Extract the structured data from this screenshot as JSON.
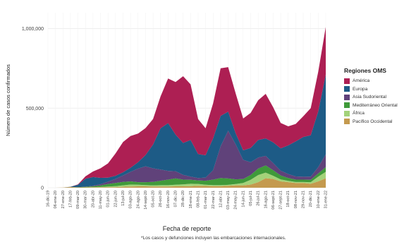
{
  "chart_data": {
    "type": "area",
    "stacked": true,
    "xlabel": "Fecha de reporte",
    "ylabel": "Número de casos confirmados",
    "ylim": [
      0,
      1100000
    ],
    "yticks": [
      0,
      500000,
      1000000
    ],
    "ytick_labels": [
      "0",
      "500,000",
      "1,000,000"
    ],
    "x_tick_labels": [
      "16-dic-19",
      "06-ene-20",
      "27-ene-20",
      "17-feb-20",
      "09-mar-20",
      "30-mar-20",
      "20-abr-20",
      "11-may-20",
      "01-jun-20",
      "22-jun-20",
      "13-jul-20",
      "03-ago-20",
      "24-ago-20",
      "14-sept-20",
      "05-oct-20",
      "26-oct-20",
      "16-nov-20",
      "07-dic-20",
      "28-dic-20",
      "18-ene-21",
      "08-feb-21",
      "01-mar-21",
      "22-mar-21",
      "12-abr-21",
      "03-may-21",
      "24-may-21",
      "14-jun-21",
      "05-jul-21",
      "26-jul-21",
      "16-ago-21",
      "06-sept-21",
      "27-sept-21",
      "18-oct-21",
      "08-nov-21",
      "29-nov-21",
      "20-dic-21",
      "10-ene-22",
      "31-ene-22"
    ],
    "legend_title": "Regiones OMS",
    "legend_position": "right",
    "grid": true,
    "footnote": "*Los casos y defunciones incluyen las embarcaciones internacionales.",
    "series": [
      {
        "name": "Pacífico Occidental",
        "color": "#c49a4e",
        "values": [
          0,
          0,
          1000,
          5000,
          2000,
          2000,
          3000,
          3000,
          4000,
          4000,
          6000,
          8000,
          9000,
          9000,
          8000,
          8000,
          8000,
          9000,
          9000,
          10000,
          12000,
          11000,
          10000,
          10000,
          12000,
          15000,
          15000,
          20000,
          35000,
          60000,
          55000,
          40000,
          35000,
          30000,
          30000,
          25000,
          40000,
          60000
        ]
      },
      {
        "name": "África",
        "color": "#a3d279",
        "values": [
          0,
          0,
          0,
          0,
          0,
          500,
          1000,
          2000,
          4000,
          6000,
          9000,
          12000,
          10000,
          8000,
          7000,
          8000,
          8000,
          10000,
          12000,
          15000,
          12000,
          8000,
          6000,
          6000,
          6000,
          8000,
          15000,
          30000,
          45000,
          35000,
          20000,
          12000,
          8000,
          6000,
          6000,
          10000,
          30000,
          40000
        ]
      },
      {
        "name": "Mediterráneo Oriental",
        "color": "#3f9a3a",
        "values": [
          0,
          0,
          0,
          0,
          1000,
          3000,
          5000,
          9000,
          15000,
          20000,
          22000,
          20000,
          16000,
          18000,
          22000,
          28000,
          35000,
          40000,
          30000,
          25000,
          22000,
          25000,
          35000,
          45000,
          40000,
          30000,
          25000,
          30000,
          40000,
          45000,
          35000,
          25000,
          18000,
          15000,
          15000,
          15000,
          20000,
          30000
        ]
      },
      {
        "name": "Asia Sudoriental",
        "color": "#60427a",
        "values": [
          0,
          0,
          0,
          0,
          0,
          1000,
          3000,
          8000,
          15000,
          25000,
          40000,
          60000,
          85000,
          100000,
          85000,
          70000,
          55000,
          45000,
          30000,
          20000,
          15000,
          20000,
          60000,
          200000,
          300000,
          220000,
          120000,
          80000,
          70000,
          60000,
          45000,
          30000,
          25000,
          20000,
          18000,
          20000,
          40000,
          80000
        ]
      },
      {
        "name": "Europa",
        "color": "#1d5b86",
        "values": [
          0,
          0,
          0,
          1000,
          15000,
          50000,
          55000,
          40000,
          25000,
          20000,
          20000,
          25000,
          40000,
          70000,
          150000,
          260000,
          300000,
          230000,
          200000,
          230000,
          150000,
          140000,
          200000,
          190000,
          120000,
          70000,
          60000,
          90000,
          110000,
          110000,
          130000,
          140000,
          180000,
          220000,
          250000,
          260000,
          350000,
          500000
        ]
      },
      {
        "name": "América",
        "color": "#ad1f53",
        "values": [
          0,
          0,
          0,
          0,
          3000,
          15000,
          35000,
          60000,
          90000,
          140000,
          190000,
          200000,
          180000,
          170000,
          160000,
          200000,
          280000,
          330000,
          420000,
          350000,
          220000,
          170000,
          220000,
          300000,
          280000,
          250000,
          200000,
          220000,
          250000,
          280000,
          220000,
          160000,
          120000,
          110000,
          130000,
          170000,
          250000,
          300000
        ]
      }
    ]
  }
}
